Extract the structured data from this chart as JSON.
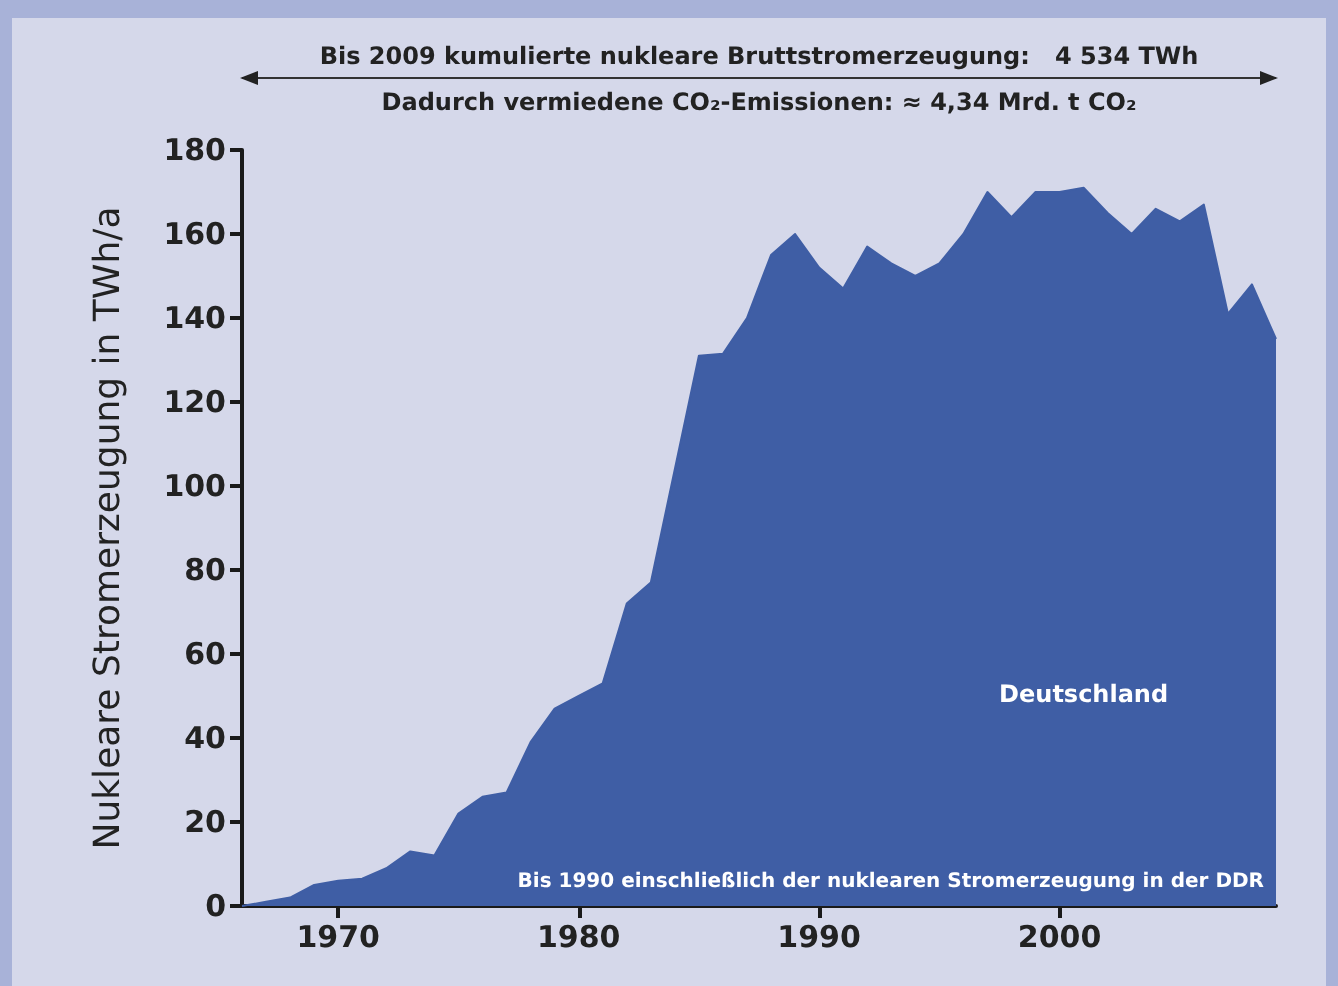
{
  "chart_data": {
    "type": "area",
    "annotations": [
      "Bis 2009 kumulierte nukleare Bruttstromerzeugung:   4 534 TWh",
      "Dadurch vermiedene CO₂-Emissionen: ≈ 4,34 Mrd. t CO₂",
      "Bis 1990 einschließlich der nuklearen Stromerzeugung in der DDR"
    ],
    "ylabel": "Nukleare Stromerzeugung in TWh/a",
    "x": [
      1966,
      1967,
      1968,
      1969,
      1970,
      1971,
      1972,
      1973,
      1974,
      1975,
      1976,
      1977,
      1978,
      1979,
      1980,
      1981,
      1982,
      1983,
      1984,
      1985,
      1986,
      1987,
      1988,
      1989,
      1990,
      1991,
      1992,
      1993,
      1994,
      1995,
      1996,
      1997,
      1998,
      1999,
      2000,
      2001,
      2002,
      2003,
      2004,
      2005,
      2006,
      2007,
      2008,
      2009
    ],
    "series": [
      {
        "name": "Deutschland",
        "color": "#3f5ea5",
        "values": [
          0,
          1,
          2,
          5,
          6,
          6.5,
          9,
          13,
          12,
          22,
          26,
          27,
          39,
          47,
          50,
          53,
          72,
          77,
          104,
          131,
          131.5,
          140,
          155,
          160,
          152,
          147,
          157,
          153,
          150,
          153,
          160,
          170,
          164,
          170,
          170,
          171,
          165,
          160,
          166,
          163,
          167,
          141,
          148,
          135
        ]
      }
    ],
    "xlim": [
      1966,
      2009
    ],
    "xticks": [
      1970,
      1980,
      1990,
      2000
    ],
    "ylim": [
      0,
      180
    ],
    "yticks": [
      0,
      20,
      40,
      60,
      80,
      100,
      120,
      140,
      160,
      180
    ],
    "grid": false,
    "legend": false,
    "marker": "none"
  }
}
